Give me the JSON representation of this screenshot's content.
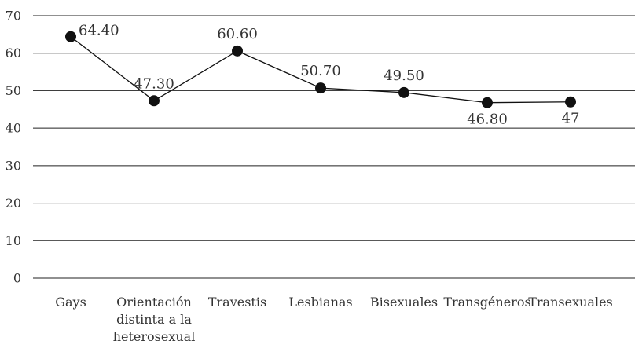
{
  "chart_data": {
    "type": "line",
    "title": "",
    "xlabel": "",
    "ylabel": "",
    "ylim": [
      0,
      70
    ],
    "yticks": [
      0,
      10,
      20,
      30,
      40,
      50,
      60,
      70
    ],
    "grid": true,
    "legend": "none",
    "categories": [
      [
        "Gays"
      ],
      [
        "Orientación",
        "distinta a la",
        "heterosexual"
      ],
      [
        "Travestis"
      ],
      [
        "Lesbianas"
      ],
      [
        "Bisexuales"
      ],
      [
        "Transgéneros"
      ],
      [
        "Transexuales"
      ]
    ],
    "series": [
      {
        "values": [
          64.4,
          47.3,
          60.6,
          50.7,
          49.5,
          46.8,
          47
        ],
        "data_labels": [
          "64.40",
          "47.30",
          "60.60",
          "50.70",
          "49.50",
          "46.80",
          "47"
        ],
        "label_positions": [
          "right",
          "above",
          "above",
          "above",
          "above",
          "below",
          "below"
        ]
      }
    ],
    "colors": {
      "line": "#111111",
      "marker": "#111111",
      "grid": "#222222",
      "text": "#333333"
    }
  }
}
